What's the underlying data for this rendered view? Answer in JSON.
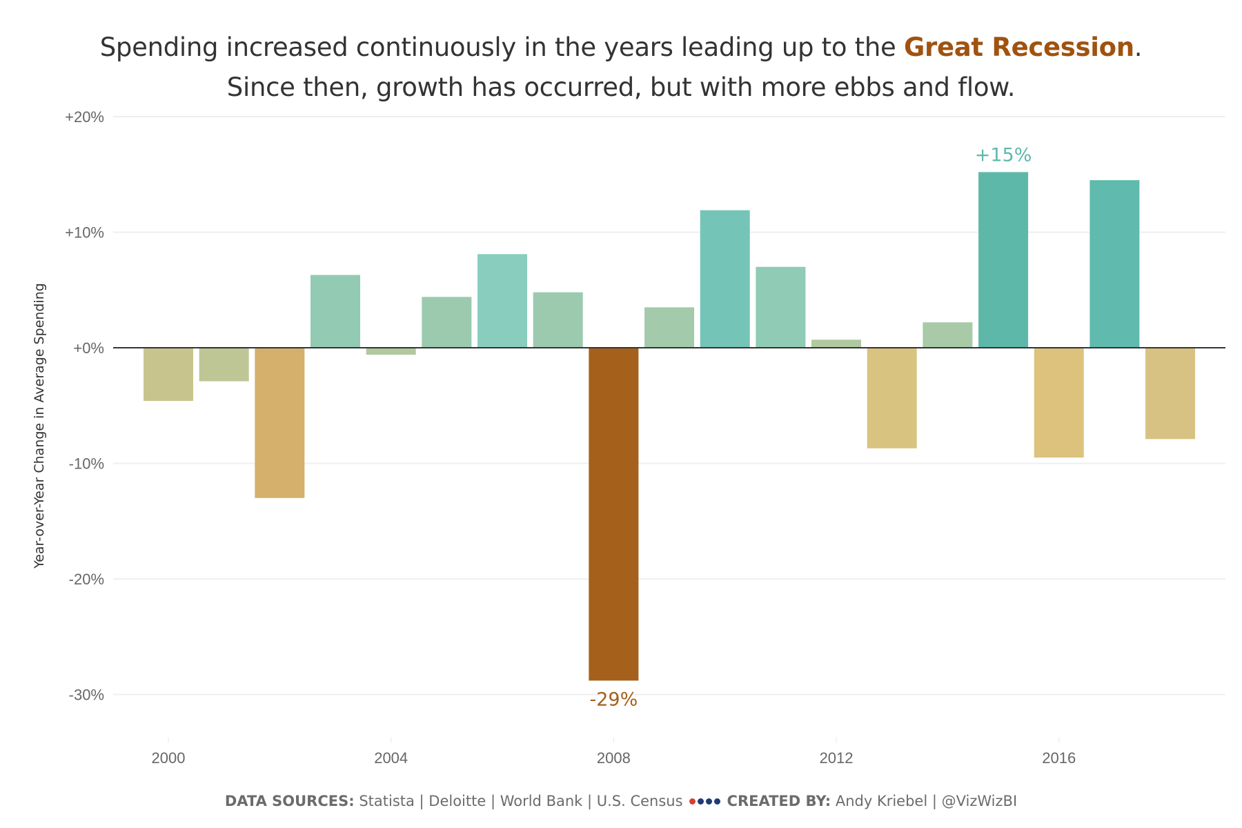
{
  "title": {
    "line1_prefix": "Spending increased continuously in the years leading up to the ",
    "line1_highlight": "Great Recession",
    "line1_suffix": ".",
    "line2": "Since then, growth has occurred, but with more ebbs and flow.",
    "highlight_color": "#a0520f"
  },
  "footer": {
    "sources_label": "DATA SOURCES:",
    "sources_text": " Statista | Deloitte | World Bank | U.S. Census",
    "dot_colors": [
      "#d8412f",
      "#1e3a78",
      "#1e3a78",
      "#1e3a78"
    ],
    "created_label": "CREATED BY:",
    "created_text": " Andy Kriebel | @VizWizBI"
  },
  "chart_data": {
    "type": "bar",
    "title": "Spending increased continuously in the years leading up to the Great Recession. Since then, growth has occurred, but with more ebbs and flow.",
    "xlabel": "",
    "ylabel": "Year-over-Year Change in Average Spending",
    "categories": [
      "2000",
      "2001",
      "2002",
      "2003",
      "2004",
      "2005",
      "2006",
      "2007",
      "2008",
      "2009",
      "2010",
      "2011",
      "2012",
      "2013",
      "2014",
      "2015",
      "2016",
      "2017",
      "2018"
    ],
    "values": [
      -4.6,
      -2.9,
      -13.0,
      6.3,
      -0.6,
      4.4,
      8.1,
      4.8,
      -28.8,
      3.5,
      11.9,
      7.0,
      0.7,
      -8.7,
      2.2,
      15.2,
      -9.5,
      14.5,
      -7.9
    ],
    "colors": [
      "#c8c48e",
      "#bec695",
      "#d4b06c",
      "#93cab3",
      "#b1c99e",
      "#9bcaae",
      "#89cdbe",
      "#9bcaaf",
      "#a5601b",
      "#a2caab",
      "#74c5b7",
      "#90cbb5",
      "#b0c9a0",
      "#d9c381",
      "#a8caa7",
      "#5eb8aa",
      "#ddc27e",
      "#60baad",
      "#d7c283"
    ],
    "ylim": [
      -33,
      22
    ],
    "yticks": [
      20,
      10,
      0,
      -10,
      -20,
      -30
    ],
    "ytick_labels": [
      "+20%",
      "+10%",
      "+0%",
      "-10%",
      "-20%",
      "-30%"
    ],
    "xtick_labels": [
      "2000",
      "2004",
      "2008",
      "2012",
      "2016"
    ],
    "grid": true,
    "annotations": [
      {
        "category": "2008",
        "text": "-29%",
        "color": "#a5601b",
        "position": "below"
      },
      {
        "category": "2015",
        "text": "+15%",
        "color": "#5eb8aa",
        "position": "above"
      }
    ]
  }
}
